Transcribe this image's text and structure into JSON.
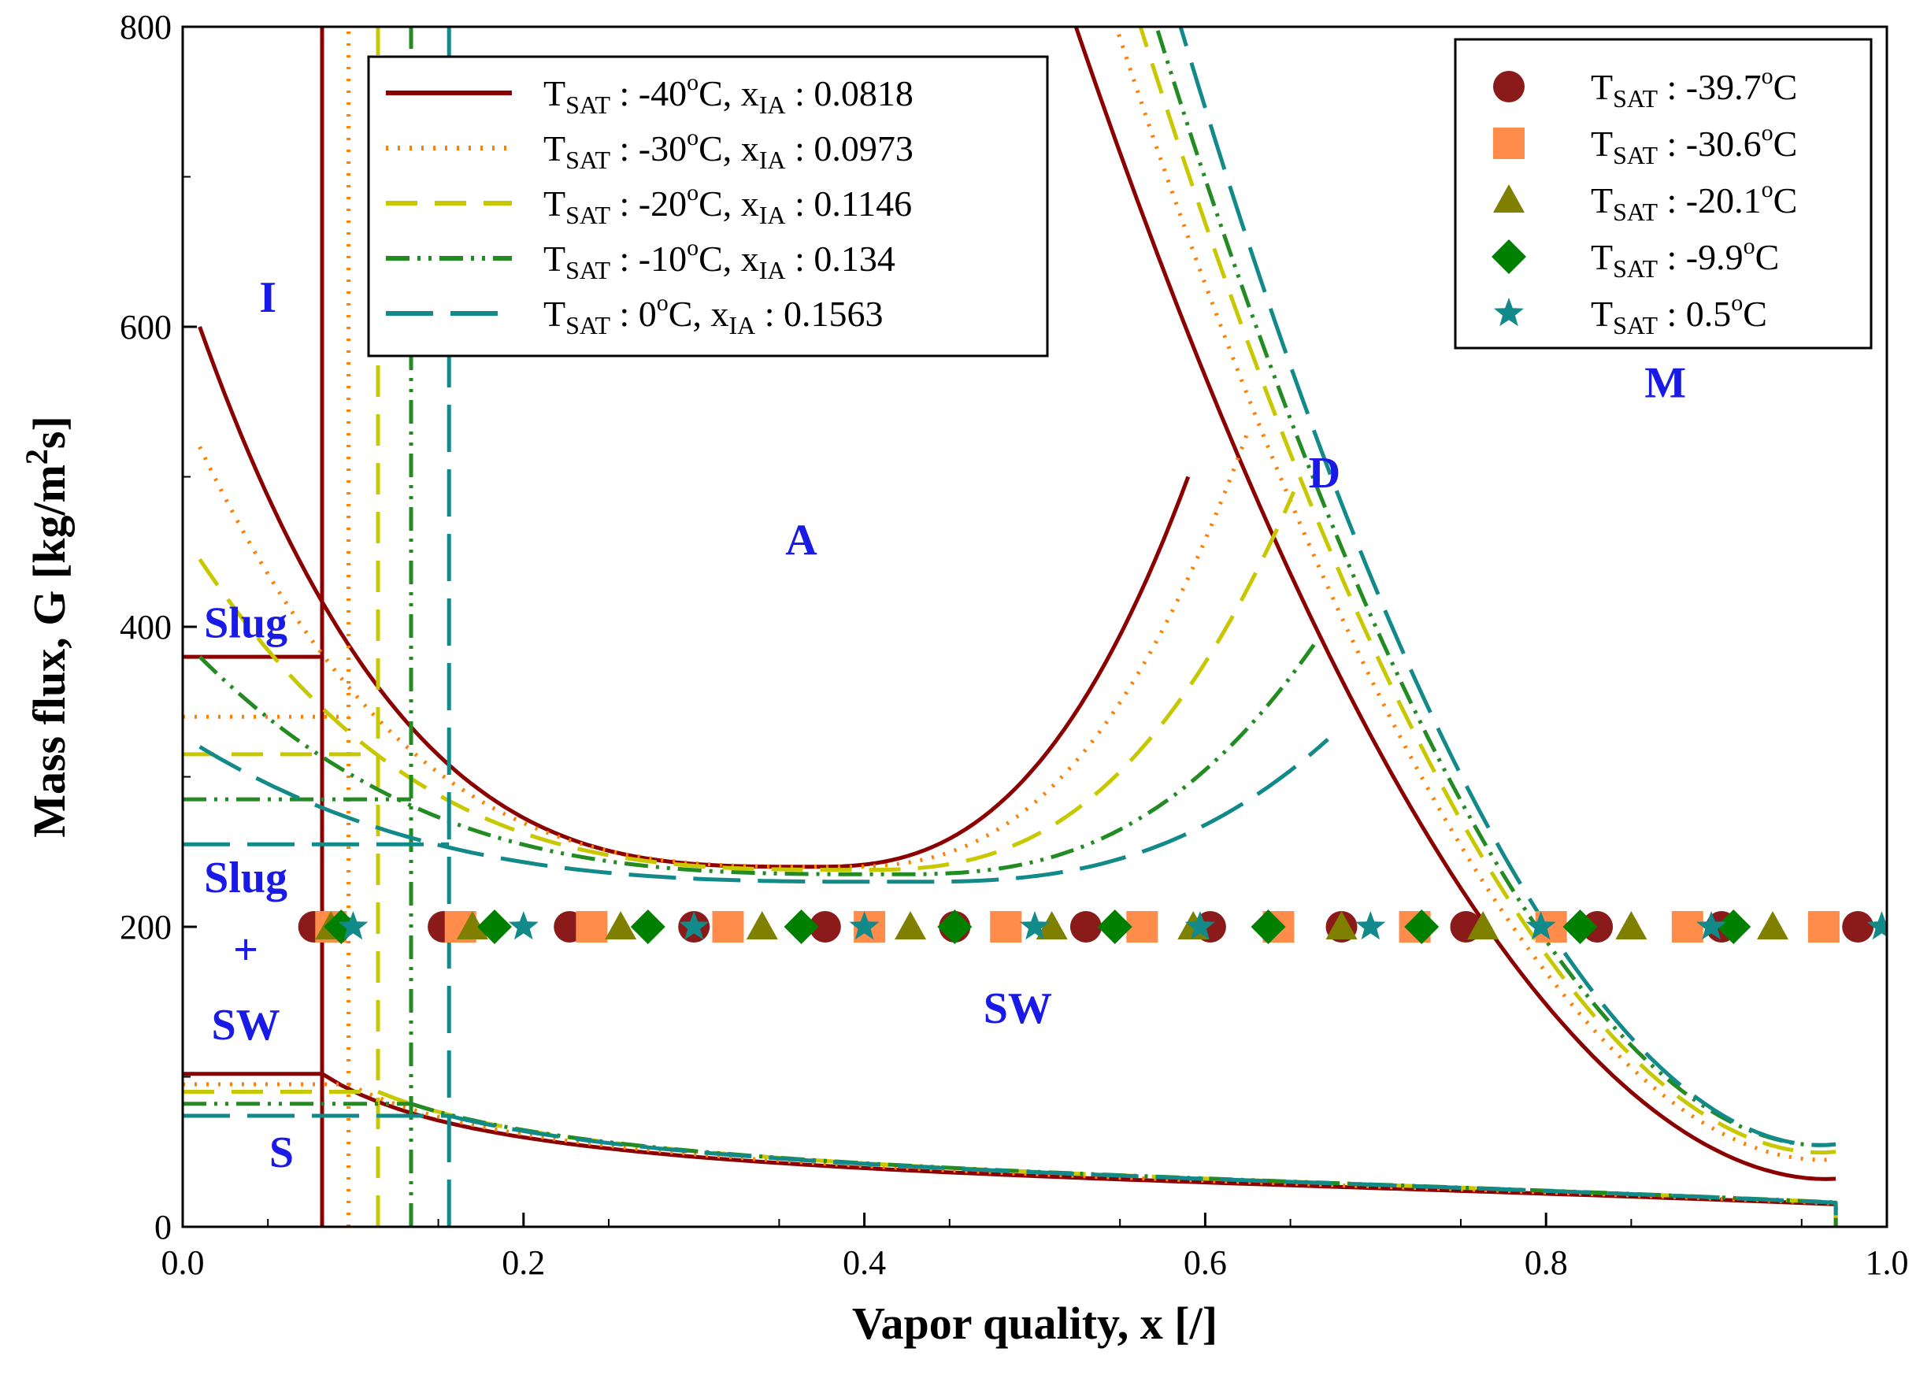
{
  "chart_data": {
    "type": "line",
    "title": "",
    "xlabel": "Vapor quality, x [/]",
    "ylabel": "Mass flux, G [kg/m2s]",
    "ylabel_parts": {
      "main": "Mass flux, G [kg/m",
      "sup": "2",
      "tail": "s]"
    },
    "xlim": [
      0,
      1
    ],
    "ylim": [
      0,
      800
    ],
    "x_ticks": [
      "0.0",
      "0.2",
      "0.4",
      "0.6",
      "0.8",
      "1.0"
    ],
    "y_ticks": [
      "0",
      "200",
      "400",
      "600",
      "800"
    ],
    "grid": false,
    "regions": [
      {
        "label": "I",
        "x": 0.05,
        "y": 610
      },
      {
        "label": "Slug",
        "x": 0.037,
        "y": 393
      },
      {
        "label": "Slug",
        "x": 0.037,
        "y": 223
      },
      {
        "label": "+",
        "x": 0.037,
        "y": 175
      },
      {
        "label": "SW",
        "x": 0.037,
        "y": 125
      },
      {
        "label": "S",
        "x": 0.058,
        "y": 40
      },
      {
        "label": "A",
        "x": 0.363,
        "y": 448
      },
      {
        "label": "SW",
        "x": 0.49,
        "y": 136
      },
      {
        "label": "D",
        "x": 0.67,
        "y": 493
      },
      {
        "label": "M",
        "x": 0.87,
        "y": 553
      }
    ],
    "series": [
      {
        "name": "TSAT : -40oC, xIA : 0.0818",
        "temp": "-40",
        "xia": "0.0818",
        "color": "#8b0000",
        "dash": "none",
        "width": 5,
        "x_ia": 0.0818,
        "g_slug": 380,
        "g_strat": 102,
        "g_top": 600,
        "g_top_end": 500,
        "peak_x": 0.59,
        "min_g": 240,
        "min_x": 0.37,
        "d_x0": 0.495,
        "end_g": 32,
        "x_end": 0.97
      },
      {
        "name": "TSAT : -30oC, xIA : 0.0973",
        "temp": "-30",
        "xia": "0.0973",
        "color": "#ff7f00",
        "dash": "3 12",
        "width": 5,
        "x_ia": 0.0973,
        "g_slug": 340,
        "g_strat": 95,
        "g_top": 520,
        "g_top_end": 530,
        "peak_x": 0.625,
        "min_g": 240,
        "min_x": 0.385,
        "d_x0": 0.52,
        "end_g": 45,
        "x_end": 0.97
      },
      {
        "name": "TSAT : -20oC, xIA : 0.1146",
        "temp": "-20",
        "xia": "0.1146",
        "color": "#c8c800",
        "dash": "40 22",
        "width": 5,
        "x_ia": 0.1146,
        "g_slug": 315,
        "g_strat": 90,
        "g_top": 445,
        "g_top_end": 490,
        "peak_x": 0.652,
        "min_g": 238,
        "min_x": 0.4,
        "d_x0": 0.535,
        "end_g": 50,
        "x_end": 0.97
      },
      {
        "name": "TSAT : -10oC, xIA : 0.134",
        "temp": "-10",
        "xia": "0.134",
        "color": "#228b22",
        "dash": "30 10 4 10 4 10",
        "width": 5,
        "x_ia": 0.134,
        "g_slug": 285,
        "g_strat": 82,
        "g_top": 380,
        "g_top_end": 390,
        "peak_x": 0.665,
        "min_g": 235,
        "min_x": 0.42,
        "d_x0": 0.545,
        "end_g": 55,
        "x_end": 0.97
      },
      {
        "name": "TSAT : 0oC, xIA : 0.1563",
        "temp": "0",
        "xia": "0.1563",
        "color": "#138a8a",
        "dash": "60 22",
        "width": 5,
        "x_ia": 0.1563,
        "g_slug": 255,
        "g_strat": 74,
        "g_top": 320,
        "g_top_end": 325,
        "peak_x": 0.672,
        "min_g": 230,
        "min_x": 0.43,
        "d_x0": 0.56,
        "end_g": 55,
        "x_end": 0.97
      }
    ],
    "markers": [
      {
        "name": "TSAT : -39.7oC",
        "temp": "-39.7",
        "shape": "circle",
        "color": "#8b1a1a",
        "G": 200,
        "x": [
          0.077,
          0.153,
          0.227,
          0.3,
          0.377,
          0.453,
          0.53,
          0.603,
          0.68,
          0.753,
          0.83,
          0.903,
          0.983
        ]
      },
      {
        "name": "TSAT : -30.6oC",
        "temp": "-30.6",
        "shape": "square",
        "color": "#ff8c4a",
        "G": 200,
        "x": [
          0.087,
          0.163,
          0.24,
          0.32,
          0.403,
          0.483,
          0.563,
          0.643,
          0.723,
          0.803,
          0.883,
          0.963
        ]
      },
      {
        "name": "TSAT : -20.1oC",
        "temp": "-20.1",
        "shape": "triangle",
        "color": "#808000",
        "G": 200,
        "x": [
          0.087,
          0.17,
          0.257,
          0.34,
          0.427,
          0.51,
          0.593,
          0.68,
          0.763,
          0.85,
          0.933
        ]
      },
      {
        "name": "TSAT : -9.9oC",
        "temp": "-9.9",
        "shape": "diamond",
        "color": "#008000",
        "G": 200,
        "x": [
          0.093,
          0.183,
          0.273,
          0.363,
          0.453,
          0.547,
          0.637,
          0.727,
          0.82,
          0.91
        ]
      },
      {
        "name": "TSAT : 0.5oC",
        "temp": "0.5",
        "shape": "star",
        "color": "#138a8a",
        "G": 200,
        "x": [
          0.1,
          0.2,
          0.3,
          0.4,
          0.5,
          0.597,
          0.697,
          0.797,
          0.897,
          0.997
        ]
      }
    ],
    "legend_lines": [
      {
        "sym": "T",
        "sub": "SAT",
        "mid": " : -40",
        "sup": "o",
        "tail": "C, x",
        "sub2": "IA",
        "end": " : 0.0818"
      },
      {
        "sym": "T",
        "sub": "SAT",
        "mid": " : -30",
        "sup": "o",
        "tail": "C, x",
        "sub2": "IA",
        "end": " : 0.0973"
      },
      {
        "sym": "T",
        "sub": "SAT",
        "mid": " : -20",
        "sup": "o",
        "tail": "C, x",
        "sub2": "IA",
        "end": " : 0.1146"
      },
      {
        "sym": "T",
        "sub": "SAT",
        "mid": " : -10",
        "sup": "o",
        "tail": "C, x",
        "sub2": "IA",
        "end": " : 0.134"
      },
      {
        "sym": "T",
        "sub": "SAT",
        "mid": " :    0",
        "sup": "o",
        "tail": "C, x",
        "sub2": "IA",
        "end": " : 0.1563"
      }
    ],
    "legend_markers": [
      {
        "sym": "T",
        "sub": "SAT",
        "mid": " : -39.7",
        "sup": "o",
        "tail": "C"
      },
      {
        "sym": "T",
        "sub": "SAT",
        "mid": " : -30.6",
        "sup": "o",
        "tail": "C"
      },
      {
        "sym": "T",
        "sub": "SAT",
        "mid": " : -20.1",
        "sup": "o",
        "tail": "C"
      },
      {
        "sym": "T",
        "sub": "SAT",
        "mid": " :   -9.9",
        "sup": "o",
        "tail": "C"
      },
      {
        "sym": "T",
        "sub": "SAT",
        "mid": " :    0.5",
        "sup": "o",
        "tail": "C"
      }
    ],
    "legend_lines_placement": "top-left",
    "legend_markers_placement": "top-right"
  }
}
